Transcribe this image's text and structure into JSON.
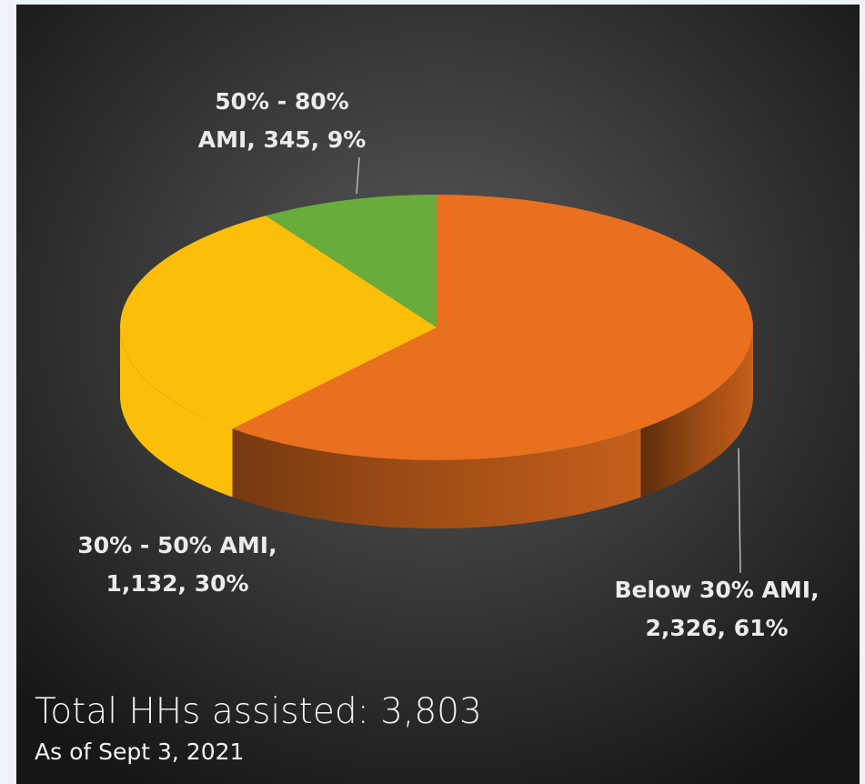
{
  "chart_data": {
    "type": "pie",
    "values": [
      2326,
      1132,
      345
    ],
    "value_labels": [
      [
        "Below 30% AMI,",
        "2,326, 61%"
      ],
      [
        "30% - 50% AMI,",
        "1,132, 30%"
      ],
      [
        "50% - 80%",
        "AMI, 345, 9%"
      ]
    ],
    "colors": [
      "#e8701f",
      "#fbbf0a",
      "#6aac3c"
    ],
    "title": "Total HHs assisted: 3,803",
    "subtitle": "As of Sept 3, 2021"
  }
}
